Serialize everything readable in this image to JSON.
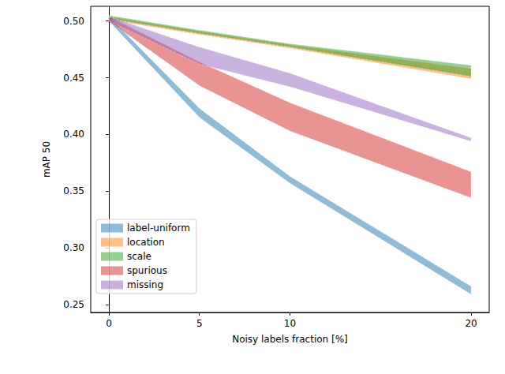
{
  "chart_data": {
    "type": "band",
    "x_label": "Noisy labels fraction [%]",
    "y_label": "mAP 50",
    "x": [
      0,
      5,
      10,
      20
    ],
    "xlim": [
      -1,
      21
    ],
    "xticks": [
      0,
      5,
      10,
      20
    ],
    "ylim": [
      0.243,
      0.513
    ],
    "yticks": [
      0.25,
      {
        "value": 0.3,
        "label": "0.30"
      },
      0.35,
      {
        "value": 0.4,
        "label": "0.40"
      },
      0.45,
      {
        "value": 0.5,
        "label": "0.50"
      }
    ],
    "legend": "lower left",
    "series": [
      {
        "name": "label-uniform",
        "color": "#1f77b4",
        "lower": [
          0.5,
          0.415,
          0.357,
          0.259
        ],
        "upper": [
          0.504,
          0.423,
          0.363,
          0.266
        ]
      },
      {
        "name": "location",
        "color": "#ff7f0e",
        "lower": [
          0.501,
          0.488,
          0.476,
          0.449
        ],
        "upper": [
          0.504,
          0.491,
          0.479,
          0.458
        ]
      },
      {
        "name": "scale",
        "color": "#2ca02c",
        "lower": [
          0.502,
          0.489,
          0.477,
          0.451
        ],
        "upper": [
          0.505,
          0.492,
          0.48,
          0.461
        ]
      },
      {
        "name": "spurious",
        "color": "#d62728",
        "lower": [
          0.5,
          0.443,
          0.403,
          0.344
        ],
        "upper": [
          0.504,
          0.464,
          0.428,
          0.367
        ]
      },
      {
        "name": "missing",
        "color": "#9467bd",
        "lower": [
          0.5,
          0.462,
          0.442,
          0.394
        ],
        "upper": [
          0.504,
          0.477,
          0.454,
          0.397
        ]
      }
    ]
  }
}
